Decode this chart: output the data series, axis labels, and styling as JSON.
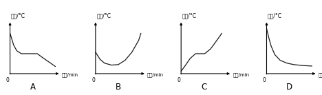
{
  "panels": [
    {
      "label": "A",
      "x": [
        0,
        0.8,
        1.5,
        2.5,
        4.5,
        6.0,
        7.0,
        8.5,
        10.0
      ],
      "y": [
        8.5,
        6.0,
        4.8,
        4.2,
        4.2,
        4.2,
        3.5,
        2.5,
        1.5
      ]
    },
    {
      "label": "B",
      "x": [
        0,
        1.0,
        2.0,
        3.5,
        5.0,
        6.5,
        8.0,
        9.5,
        10.0
      ],
      "y": [
        4.5,
        3.0,
        2.2,
        1.8,
        1.9,
        2.8,
        4.5,
        7.0,
        8.5
      ]
    },
    {
      "label": "C",
      "x": [
        0,
        1.0,
        2.0,
        3.2,
        5.2,
        6.5,
        7.5,
        9.0
      ],
      "y": [
        0.5,
        1.8,
        3.2,
        4.2,
        4.2,
        5.2,
        6.5,
        8.5
      ]
    },
    {
      "label": "D",
      "x": [
        0,
        0.5,
        1.0,
        1.8,
        3.0,
        4.5,
        6.0,
        8.0,
        10.0
      ],
      "y": [
        9.5,
        7.5,
        5.8,
        4.0,
        2.8,
        2.2,
        1.9,
        1.7,
        1.6
      ]
    }
  ],
  "xlabel": "时间/min",
  "ylabel": "温度/°C",
  "line_color": "#1a1a1a",
  "bg_color": "#ffffff"
}
